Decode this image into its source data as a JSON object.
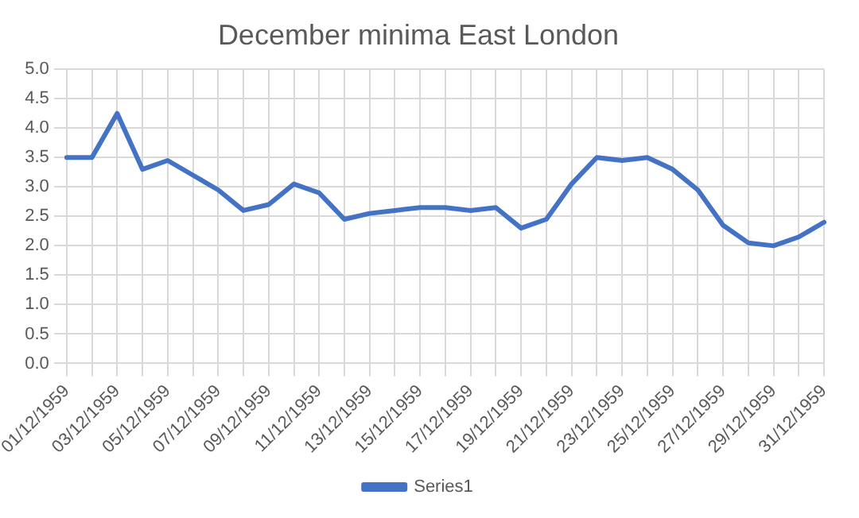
{
  "chart_data": {
    "type": "line",
    "title": "December minima East London",
    "categories": [
      "01/12/1959",
      null,
      "03/12/1959",
      null,
      "05/12/1959",
      null,
      "07/12/1959",
      null,
      "09/12/1959",
      null,
      "11/12/1959",
      null,
      "13/12/1959",
      null,
      "15/12/1959",
      null,
      "17/12/1959",
      null,
      "19/12/1959",
      null,
      "21/12/1959",
      null,
      "23/12/1959",
      null,
      "25/12/1959",
      null,
      "27/12/1959",
      null,
      "29/12/1959",
      null,
      "31/12/1959"
    ],
    "series": [
      {
        "name": "Series1",
        "color": "#4472c4",
        "values": [
          3.5,
          3.5,
          4.25,
          3.3,
          3.45,
          3.2,
          2.95,
          2.6,
          2.7,
          3.05,
          2.9,
          2.45,
          2.55,
          2.6,
          2.65,
          2.65,
          2.6,
          2.65,
          2.3,
          2.45,
          3.05,
          3.5,
          3.45,
          3.5,
          3.3,
          2.95,
          2.35,
          2.05,
          2.0,
          2.15,
          2.4
        ]
      }
    ],
    "ylim": [
      0,
      5
    ],
    "yticks": [
      {
        "value": 0,
        "label": "0.0"
      },
      {
        "value": 0.5,
        "label": "0.5"
      },
      {
        "value": 1,
        "label": "1.0"
      },
      {
        "value": 1.5,
        "label": "1.5"
      },
      {
        "value": 2,
        "label": "2.0"
      },
      {
        "value": 2.5,
        "label": "2.5"
      },
      {
        "value": 3,
        "label": "3.0"
      },
      {
        "value": 3.5,
        "label": "3.5"
      },
      {
        "value": 4,
        "label": "4.0"
      },
      {
        "value": 4.5,
        "label": "4.5"
      },
      {
        "value": 5,
        "label": "5.0"
      }
    ],
    "grid": true,
    "legend": "bottom",
    "marker": "none",
    "line_style": "solid"
  }
}
